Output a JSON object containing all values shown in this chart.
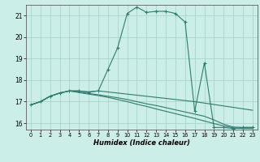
{
  "xlabel": "Humidex (Indice chaleur)",
  "ylabel": "",
  "bg_color": "#cceee8",
  "grid_color": "#aad4ce",
  "line_color": "#2e7d6e",
  "xlim": [
    -0.5,
    23.5
  ],
  "ylim": [
    15.7,
    21.5
  ],
  "yticks": [
    16,
    17,
    18,
    19,
    20,
    21
  ],
  "xticks": [
    0,
    1,
    2,
    3,
    4,
    5,
    6,
    7,
    8,
    9,
    10,
    11,
    12,
    13,
    14,
    15,
    16,
    17,
    18,
    19,
    20,
    21,
    22,
    23
  ],
  "lines": [
    {
      "x": [
        0,
        1,
        2,
        3,
        4,
        5,
        6,
        7,
        8,
        9,
        10,
        11,
        12,
        13,
        14,
        15,
        16,
        17,
        18,
        19,
        20,
        21,
        22,
        23
      ],
      "y": [
        16.85,
        17.0,
        17.25,
        17.4,
        17.5,
        17.5,
        17.45,
        17.5,
        18.5,
        19.5,
        21.1,
        21.4,
        21.15,
        21.2,
        21.2,
        21.1,
        20.7,
        16.55,
        18.8,
        15.8,
        15.8,
        15.75,
        15.8,
        15.8
      ],
      "has_markers": true
    },
    {
      "x": [
        0,
        1,
        2,
        3,
        4,
        5,
        6,
        7,
        8,
        9,
        10,
        11,
        12,
        13,
        14,
        15,
        16,
        17,
        23
      ],
      "y": [
        16.85,
        17.0,
        17.25,
        17.4,
        17.5,
        17.5,
        17.45,
        17.5,
        17.45,
        17.4,
        17.35,
        17.3,
        17.25,
        17.2,
        17.15,
        17.1,
        17.05,
        17.0,
        16.6
      ],
      "has_markers": false
    },
    {
      "x": [
        0,
        1,
        2,
        3,
        4,
        5,
        6,
        7,
        8,
        9,
        10,
        11,
        12,
        13,
        14,
        15,
        16,
        17,
        18,
        19,
        20,
        21,
        22,
        23
      ],
      "y": [
        16.85,
        17.0,
        17.25,
        17.4,
        17.5,
        17.45,
        17.38,
        17.32,
        17.25,
        17.18,
        17.1,
        17.0,
        16.9,
        16.82,
        16.72,
        16.62,
        16.52,
        16.42,
        16.32,
        16.15,
        15.95,
        15.82,
        15.8,
        15.8
      ],
      "has_markers": false
    },
    {
      "x": [
        0,
        1,
        2,
        3,
        4,
        5,
        6,
        7,
        8,
        9,
        10,
        11,
        12,
        13,
        14,
        15,
        16,
        17,
        18,
        19,
        20,
        21,
        22,
        23
      ],
      "y": [
        16.85,
        17.0,
        17.25,
        17.4,
        17.5,
        17.42,
        17.35,
        17.28,
        17.2,
        17.1,
        17.0,
        16.88,
        16.78,
        16.66,
        16.55,
        16.44,
        16.33,
        16.22,
        16.1,
        15.98,
        15.87,
        15.78,
        15.75,
        15.75
      ],
      "has_markers": false
    }
  ]
}
